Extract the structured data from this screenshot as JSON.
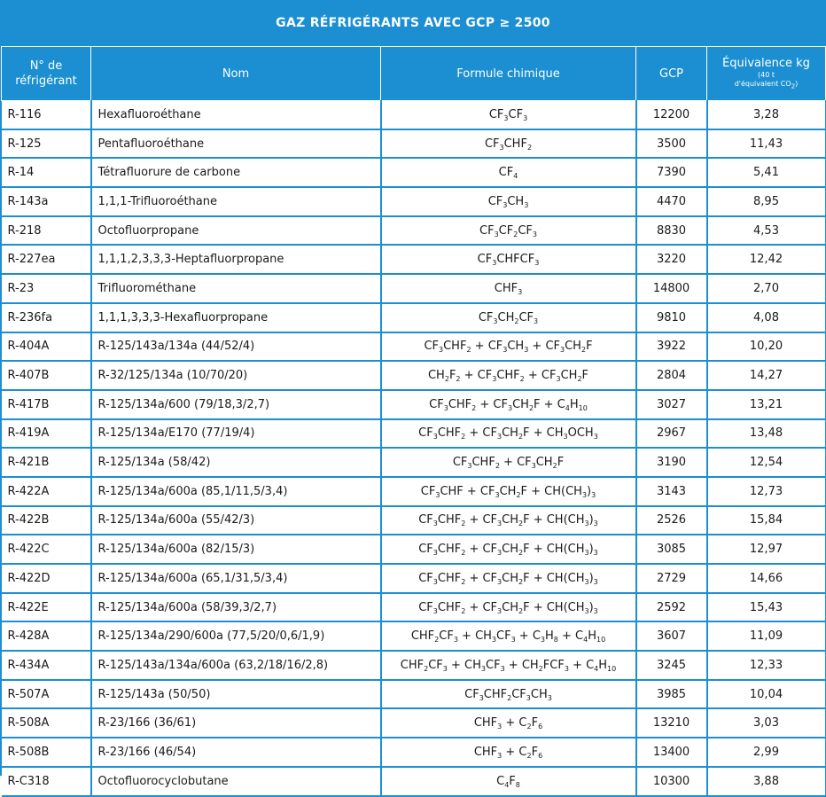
{
  "title": "GAZ RÉFRIGÉRANTS AVEC GCP ≥ 2500",
  "headers": {
    "num_line1": "N° de",
    "num_line2": "réfrigérant",
    "name": "Nom",
    "formula": "Formule chimique",
    "gcp": "GCP",
    "equiv_line1": "Équivalence kg",
    "equiv_line2": "(40 t",
    "equiv_line3": "d'équivalent CO",
    "equiv_line3_sub": "2",
    "equiv_line3_end": ")"
  },
  "rows": [
    {
      "num": "R-116",
      "name": "Hexafluoroéthane",
      "formula": [
        [
          "CF",
          ""
        ],
        [
          "3",
          true
        ],
        [
          "CF",
          ""
        ],
        [
          "3",
          true
        ]
      ],
      "gcp": "12200",
      "equiv": "3,28"
    },
    {
      "num": "R-125",
      "name": "Pentafluoroéthane",
      "formula": [
        [
          "CF",
          ""
        ],
        [
          "3",
          true
        ],
        [
          "CHF",
          ""
        ],
        [
          "2",
          true
        ]
      ],
      "gcp": "3500",
      "equiv": "11,43"
    },
    {
      "num": "R-14",
      "name": "Tétrafluorure de carbone",
      "formula": [
        [
          "CF",
          ""
        ],
        [
          "4",
          true
        ]
      ],
      "gcp": "7390",
      "equiv": "5,41"
    },
    {
      "num": "R-143a",
      "name": "1,1,1-Trifluoroéthane",
      "formula": [
        [
          "CF",
          ""
        ],
        [
          "3",
          true
        ],
        [
          "CH",
          ""
        ],
        [
          "3",
          true
        ]
      ],
      "gcp": "4470",
      "equiv": "8,95"
    },
    {
      "num": "R-218",
      "name": "Octofluorpropane",
      "formula": [
        [
          "CF",
          ""
        ],
        [
          "3",
          true
        ],
        [
          "CF",
          ""
        ],
        [
          "2",
          true
        ],
        [
          "CF",
          ""
        ],
        [
          "3",
          true
        ]
      ],
      "gcp": "8830",
      "equiv": "4,53"
    },
    {
      "num": "R-227ea",
      "name": "1,1,1,2,3,3,3-Heptafluorpropane",
      "formula": [
        [
          "CF",
          ""
        ],
        [
          "3",
          true
        ],
        [
          "CHFCF",
          ""
        ],
        [
          "3",
          true
        ]
      ],
      "gcp": "3220",
      "equiv": "12,42"
    },
    {
      "num": "R-23",
      "name": "Trifluorométhane",
      "formula": [
        [
          "CHF",
          ""
        ],
        [
          "3",
          true
        ]
      ],
      "gcp": "14800",
      "equiv": "2,70"
    },
    {
      "num": "R-236fa",
      "name": "1,1,1,3,3,3-Hexafluorpropane",
      "formula": [
        [
          "CF",
          ""
        ],
        [
          "3",
          true
        ],
        [
          "CH",
          ""
        ],
        [
          "2",
          true
        ],
        [
          "CF",
          ""
        ],
        [
          "3",
          true
        ]
      ],
      "gcp": "9810",
      "equiv": "4,08"
    },
    {
      "num": "R-404A",
      "name": "R-125/143a/134a (44/52/4)",
      "formula": [
        [
          "CF",
          ""
        ],
        [
          "3",
          true
        ],
        [
          "CHF",
          ""
        ],
        [
          "2",
          true
        ],
        [
          " + CF",
          ""
        ],
        [
          "3",
          true
        ],
        [
          "CH",
          ""
        ],
        [
          "3",
          true
        ],
        [
          " + CF",
          ""
        ],
        [
          "3",
          true
        ],
        [
          "CH",
          ""
        ],
        [
          "2",
          true
        ],
        [
          "F",
          ""
        ]
      ],
      "gcp": "3922",
      "equiv": "10,20"
    },
    {
      "num": "R-407B",
      "name": "R-32/125/134a (10/70/20)",
      "formula": [
        [
          "CH",
          ""
        ],
        [
          "2",
          true
        ],
        [
          "F",
          ""
        ],
        [
          "2",
          true
        ],
        [
          " + CF",
          ""
        ],
        [
          "3",
          true
        ],
        [
          "CHF",
          ""
        ],
        [
          "2",
          true
        ],
        [
          " + CF",
          ""
        ],
        [
          "3",
          true
        ],
        [
          "CH",
          ""
        ],
        [
          "2",
          true
        ],
        [
          "F",
          ""
        ]
      ],
      "gcp": "2804",
      "equiv": "14,27"
    },
    {
      "num": "R-417B",
      "name": "R-125/134a/600 (79/18,3/2,7)",
      "formula": [
        [
          "CF",
          ""
        ],
        [
          "3",
          true
        ],
        [
          "CHF",
          ""
        ],
        [
          "2",
          true
        ],
        [
          " + CF",
          ""
        ],
        [
          "3",
          true
        ],
        [
          "CH",
          ""
        ],
        [
          "2",
          true
        ],
        [
          "F + C",
          ""
        ],
        [
          "4",
          true
        ],
        [
          "H",
          ""
        ],
        [
          "10",
          true
        ]
      ],
      "gcp": "3027",
      "equiv": "13,21"
    },
    {
      "num": "R-419A",
      "name": "R-125/134a/E170 (77/19/4)",
      "formula": [
        [
          "CF",
          ""
        ],
        [
          "3",
          true
        ],
        [
          "CHF",
          ""
        ],
        [
          "2",
          true
        ],
        [
          " + CF",
          ""
        ],
        [
          "3",
          true
        ],
        [
          "CH",
          ""
        ],
        [
          "2",
          true
        ],
        [
          "F + CH",
          ""
        ],
        [
          "3",
          true
        ],
        [
          "OCH",
          ""
        ],
        [
          "3",
          true
        ]
      ],
      "gcp": "2967",
      "equiv": "13,48"
    },
    {
      "num": "R-421B",
      "name": "R-125/134a (58/42)",
      "formula": [
        [
          "CF",
          ""
        ],
        [
          "3",
          true
        ],
        [
          "CHF",
          ""
        ],
        [
          "2",
          true
        ],
        [
          " + CF",
          ""
        ],
        [
          "3",
          true
        ],
        [
          "CH",
          ""
        ],
        [
          "2",
          true
        ],
        [
          "F",
          ""
        ]
      ],
      "gcp": "3190",
      "equiv": "12,54"
    },
    {
      "num": "R-422A",
      "name": "R-125/134a/600a (85,1/11,5/3,4)",
      "formula": [
        [
          "CF",
          ""
        ],
        [
          "3",
          true
        ],
        [
          "CHF + CF",
          ""
        ],
        [
          "3",
          true
        ],
        [
          "CH",
          ""
        ],
        [
          "2",
          true
        ],
        [
          "F  + CH(CH",
          ""
        ],
        [
          "3",
          true
        ],
        [
          ")",
          ""
        ],
        [
          "3",
          true
        ]
      ],
      "gcp": "3143",
      "equiv": "12,73"
    },
    {
      "num": "R-422B",
      "name": "R-125/134a/600a (55/42/3)",
      "formula": [
        [
          "CF",
          ""
        ],
        [
          "3",
          true
        ],
        [
          "CHF",
          ""
        ],
        [
          "2",
          true
        ],
        [
          " + CF",
          ""
        ],
        [
          "3",
          true
        ],
        [
          "CH",
          ""
        ],
        [
          "2",
          true
        ],
        [
          "F + CH(CH",
          ""
        ],
        [
          "3",
          true
        ],
        [
          ")",
          ""
        ],
        [
          "3",
          true
        ]
      ],
      "gcp": "2526",
      "equiv": "15,84"
    },
    {
      "num": "R-422C",
      "name": "R-125/134a/600a (82/15/3)",
      "formula": [
        [
          "CF",
          ""
        ],
        [
          "3",
          true
        ],
        [
          "CHF",
          ""
        ],
        [
          "2",
          true
        ],
        [
          " + CF",
          ""
        ],
        [
          "3",
          true
        ],
        [
          "CH",
          ""
        ],
        [
          "2",
          true
        ],
        [
          "F + CH(CH",
          ""
        ],
        [
          "3",
          true
        ],
        [
          ")",
          ""
        ],
        [
          "3",
          true
        ]
      ],
      "gcp": "3085",
      "equiv": "12,97"
    },
    {
      "num": "R-422D",
      "name": "R-125/134a/600a (65,1/31,5/3,4)",
      "formula": [
        [
          "CF",
          ""
        ],
        [
          "3",
          true
        ],
        [
          "CHF",
          ""
        ],
        [
          "2",
          true
        ],
        [
          " + CF",
          ""
        ],
        [
          "3",
          true
        ],
        [
          "CH",
          ""
        ],
        [
          "2",
          true
        ],
        [
          "F + CH(CH",
          ""
        ],
        [
          "3",
          true
        ],
        [
          ")",
          ""
        ],
        [
          "3",
          true
        ]
      ],
      "gcp": "2729",
      "equiv": "14,66"
    },
    {
      "num": "R-422E",
      "name": "R-125/134a/600a (58/39,3/2,7)",
      "formula": [
        [
          "CF",
          ""
        ],
        [
          "3",
          true
        ],
        [
          "CHF",
          ""
        ],
        [
          "2",
          true
        ],
        [
          " + CF",
          ""
        ],
        [
          "3",
          true
        ],
        [
          "CH",
          ""
        ],
        [
          "2",
          true
        ],
        [
          "F + CH(CH",
          ""
        ],
        [
          "3",
          true
        ],
        [
          ")",
          ""
        ],
        [
          "3",
          true
        ]
      ],
      "gcp": "2592",
      "equiv": "15,43"
    },
    {
      "num": "R-428A",
      "name": "R-125/134a/290/600a (77,5/20/0,6/1,9)",
      "formula": [
        [
          "CHF",
          ""
        ],
        [
          "2",
          true
        ],
        [
          "CF",
          ""
        ],
        [
          "3",
          true
        ],
        [
          " + CH",
          ""
        ],
        [
          "3",
          true
        ],
        [
          "CF",
          ""
        ],
        [
          "3",
          true
        ],
        [
          " + C",
          ""
        ],
        [
          "3",
          true
        ],
        [
          "H",
          ""
        ],
        [
          "8",
          true
        ],
        [
          " + C",
          ""
        ],
        [
          "4",
          true
        ],
        [
          "H",
          ""
        ],
        [
          "10",
          true
        ]
      ],
      "gcp": "3607",
      "equiv": "11,09"
    },
    {
      "num": "R-434A",
      "name": "R-125/143a/134a/600a (63,2/18/16/2,8)",
      "formula": [
        [
          "CHF",
          ""
        ],
        [
          "2",
          true
        ],
        [
          "CF",
          ""
        ],
        [
          "3",
          true
        ],
        [
          " + CH",
          ""
        ],
        [
          "3",
          true
        ],
        [
          "CF",
          ""
        ],
        [
          "3",
          true
        ],
        [
          " + CH",
          ""
        ],
        [
          "2",
          true
        ],
        [
          "FCF",
          ""
        ],
        [
          "3",
          true
        ],
        [
          " + C",
          ""
        ],
        [
          "4",
          true
        ],
        [
          "H",
          ""
        ],
        [
          "10",
          true
        ]
      ],
      "gcp": "3245",
      "equiv": "12,33"
    },
    {
      "num": "R-507A",
      "name": "R-125/143a (50/50)",
      "formula": [
        [
          "CF",
          ""
        ],
        [
          "3",
          true
        ],
        [
          "CHF",
          ""
        ],
        [
          "2",
          true
        ],
        [
          "CF",
          ""
        ],
        [
          "3",
          true
        ],
        [
          "CH",
          ""
        ],
        [
          "3",
          true
        ]
      ],
      "gcp": "3985",
      "equiv": "10,04"
    },
    {
      "num": "R-508A",
      "name": "R-23/166 (36/61)",
      "formula": [
        [
          "CHF",
          ""
        ],
        [
          "3",
          true
        ],
        [
          " + C",
          ""
        ],
        [
          "2",
          true
        ],
        [
          "F",
          ""
        ],
        [
          "6",
          true
        ]
      ],
      "gcp": "13210",
      "equiv": "3,03"
    },
    {
      "num": "R-508B",
      "name": "R-23/166 (46/54)",
      "formula": [
        [
          "CHF",
          ""
        ],
        [
          "3",
          true
        ],
        [
          " + C",
          ""
        ],
        [
          "2",
          true
        ],
        [
          "F",
          ""
        ],
        [
          "6",
          true
        ]
      ],
      "gcp": "13400",
      "equiv": "2,99"
    },
    {
      "num": "R-C318",
      "name": "Octofluorocyclobutane",
      "formula": [
        [
          "C",
          ""
        ],
        [
          "4",
          true
        ],
        [
          "F",
          ""
        ],
        [
          "8",
          true
        ]
      ],
      "gcp": "10300",
      "equiv": "3,88"
    }
  ]
}
